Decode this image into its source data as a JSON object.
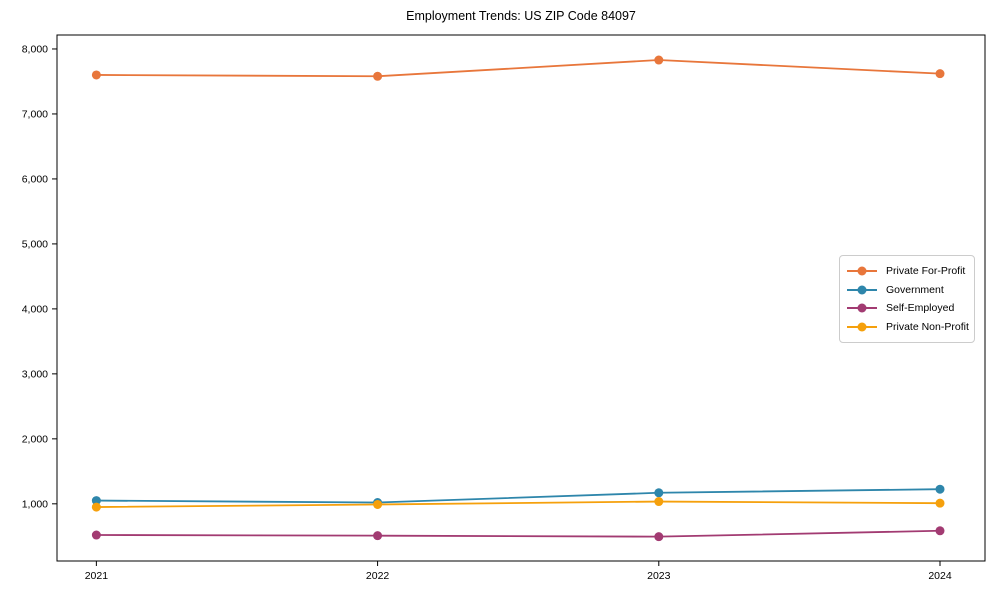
{
  "chart_data": {
    "type": "line",
    "title": "Employment Trends: US ZIP Code 84097",
    "categories": [
      "2021",
      "2022",
      "2023",
      "2024"
    ],
    "series": [
      {
        "name": "Private For-Profit",
        "color": "#E8763B",
        "marker": "circle",
        "values": [
          7600,
          7580,
          7830,
          7620
        ]
      },
      {
        "name": "Government",
        "color": "#2E86AB",
        "marker": "circle",
        "values": [
          1050,
          1020,
          1170,
          1225
        ]
      },
      {
        "name": "Self-Employed",
        "color": "#A23B72",
        "marker": "circle",
        "values": [
          520,
          510,
          495,
          585
        ]
      },
      {
        "name": "Private Non-Profit",
        "color": "#F5A00C",
        "marker": "circle",
        "values": [
          950,
          990,
          1035,
          1010
        ]
      }
    ],
    "xlabel": "",
    "ylabel": "",
    "ylim": [
      120,
      8215
    ],
    "yticks": [
      1000,
      2000,
      3000,
      4000,
      5000,
      6000,
      7000,
      8000
    ],
    "ytick_labels": [
      "1,000",
      "2,000",
      "3,000",
      "4,000",
      "5,000",
      "6,000",
      "7,000",
      "8,000"
    ],
    "grid": false,
    "legend_position": "center right",
    "axis_color": "#000000"
  }
}
